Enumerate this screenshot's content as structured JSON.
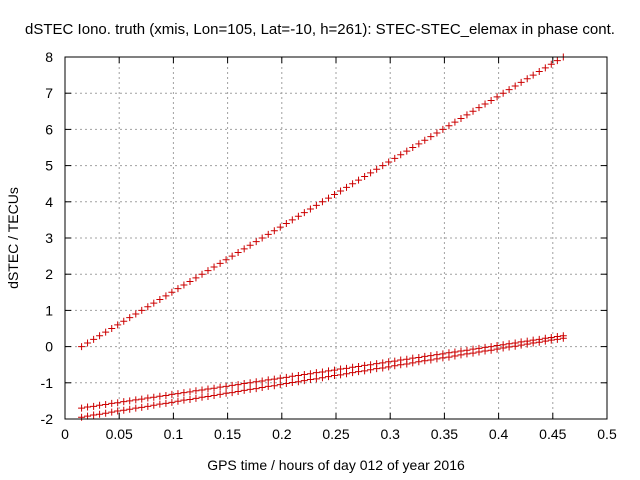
{
  "chart_data": {
    "type": "scatter",
    "title": "dSTEC Iono. truth (xmis, Lon=105, Lat=-10, h=261): STEC-STEC_elemax in phase cont.",
    "xlabel": "GPS time / hours of day 012 of year 2016",
    "ylabel": "dSTEC  / TECUs",
    "xlim": [
      0,
      0.5
    ],
    "ylim": [
      -2,
      8
    ],
    "x_ticks": [
      0,
      0.05,
      0.1,
      0.15,
      0.2,
      0.25,
      0.3,
      0.35,
      0.4,
      0.45,
      0.5
    ],
    "x_tick_labels": [
      "0",
      "0.05",
      "0.1",
      "0.15",
      "0.2",
      "0.25",
      "0.3",
      "0.35",
      "0.4",
      "0.45",
      "0.5"
    ],
    "y_ticks": [
      -2,
      -1,
      0,
      1,
      2,
      3,
      4,
      5,
      6,
      7,
      8
    ],
    "y_tick_labels": [
      "-2",
      "-1",
      "0",
      "1",
      "2",
      "3",
      "4",
      "5",
      "6",
      "7",
      "8"
    ],
    "grid": true,
    "marker": "+",
    "color": "#cc0000",
    "series": [
      {
        "x": [
          0.0153,
          0.0208,
          0.0264,
          0.0319,
          0.0375,
          0.0431,
          0.0486,
          0.0542,
          0.0597,
          0.0653,
          0.0708,
          0.0764,
          0.0819,
          0.0875,
          0.0931,
          0.0986,
          0.1042,
          0.1097,
          0.1153,
          0.1208,
          0.1264,
          0.1319,
          0.1375,
          0.1431,
          0.1486,
          0.1542,
          0.1597,
          0.1653,
          0.1708,
          0.1764,
          0.1819,
          0.1875,
          0.1931,
          0.1986,
          0.2042,
          0.2097,
          0.2153,
          0.2208,
          0.2264,
          0.2319,
          0.2375,
          0.2431,
          0.2486,
          0.2542,
          0.2597,
          0.2653,
          0.2708,
          0.2764,
          0.2819,
          0.2875,
          0.2931,
          0.2986,
          0.3042,
          0.3097,
          0.3153,
          0.3208,
          0.3264,
          0.3319,
          0.3375,
          0.3431,
          0.3486,
          0.3542,
          0.3597,
          0.3653,
          0.3708,
          0.3764,
          0.3819,
          0.3875,
          0.3931,
          0.3986,
          0.4042,
          0.4097,
          0.4153,
          0.4208,
          0.4264,
          0.4319,
          0.4375,
          0.4431,
          0.4486,
          0.4542,
          0.4597
        ],
        "y": [
          0.0,
          0.1,
          0.2,
          0.3,
          0.4,
          0.5,
          0.6,
          0.7,
          0.8,
          0.9,
          1.0,
          1.1,
          1.2,
          1.3,
          1.4,
          1.5,
          1.6,
          1.7,
          1.8,
          1.9,
          2.0,
          2.1,
          2.2,
          2.3,
          2.4,
          2.5,
          2.6,
          2.7,
          2.8,
          2.9,
          3.0,
          3.1,
          3.2,
          3.3,
          3.4,
          3.5,
          3.6,
          3.7,
          3.8,
          3.9,
          4.0,
          4.1,
          4.2,
          4.3,
          4.4,
          4.5,
          4.6,
          4.7,
          4.8,
          4.9,
          5.0,
          5.1,
          5.2,
          5.3,
          5.4,
          5.5,
          5.6,
          5.7,
          5.8,
          5.9,
          6.0,
          6.1,
          6.2,
          6.3,
          6.4,
          6.5,
          6.6,
          6.7,
          6.8,
          6.9,
          7.0,
          7.1,
          7.2,
          7.3,
          7.4,
          7.5,
          7.6,
          7.7,
          7.8,
          7.9,
          8.0
        ]
      },
      {
        "x": [
          0.0153,
          0.0208,
          0.0264,
          0.0319,
          0.0375,
          0.0431,
          0.0486,
          0.0542,
          0.0597,
          0.0653,
          0.0708,
          0.0764,
          0.0819,
          0.0875,
          0.0931,
          0.0986,
          0.1042,
          0.1097,
          0.1153,
          0.1208,
          0.1264,
          0.1319,
          0.1375,
          0.1431,
          0.1486,
          0.1542,
          0.1597,
          0.1653,
          0.1708,
          0.1764,
          0.1819,
          0.1875,
          0.1931,
          0.1986,
          0.2042,
          0.2097,
          0.2153,
          0.2208,
          0.2264,
          0.2319,
          0.2375,
          0.2431,
          0.2486,
          0.2542,
          0.2597,
          0.2653,
          0.2708,
          0.2764,
          0.2819,
          0.2875,
          0.2931,
          0.2986,
          0.3042,
          0.3097,
          0.3153,
          0.3208,
          0.3264,
          0.3319,
          0.3375,
          0.3431,
          0.3486,
          0.3542,
          0.3597,
          0.3653,
          0.3708,
          0.3764,
          0.3819,
          0.3875,
          0.3931,
          0.3986,
          0.4042,
          0.4097,
          0.4153,
          0.4208,
          0.4264,
          0.4319,
          0.4375,
          0.4431,
          0.4486,
          0.4542,
          0.4597
        ],
        "y": [
          -1.7,
          -1.67,
          -1.65,
          -1.62,
          -1.6,
          -1.57,
          -1.55,
          -1.52,
          -1.5,
          -1.47,
          -1.45,
          -1.42,
          -1.4,
          -1.37,
          -1.35,
          -1.32,
          -1.3,
          -1.27,
          -1.25,
          -1.22,
          -1.2,
          -1.17,
          -1.15,
          -1.12,
          -1.1,
          -1.07,
          -1.05,
          -1.02,
          -1.0,
          -0.97,
          -0.95,
          -0.92,
          -0.9,
          -0.87,
          -0.85,
          -0.82,
          -0.8,
          -0.77,
          -0.75,
          -0.72,
          -0.7,
          -0.67,
          -0.65,
          -0.62,
          -0.6,
          -0.57,
          -0.55,
          -0.52,
          -0.5,
          -0.47,
          -0.45,
          -0.42,
          -0.4,
          -0.37,
          -0.35,
          -0.32,
          -0.3,
          -0.27,
          -0.25,
          -0.22,
          -0.2,
          -0.17,
          -0.15,
          -0.12,
          -0.1,
          -0.07,
          -0.05,
          -0.02,
          0.0,
          0.03,
          0.05,
          0.08,
          0.1,
          0.13,
          0.15,
          0.18,
          0.2,
          0.23,
          0.25,
          0.28,
          0.3
        ]
      },
      {
        "x": [
          0.0153,
          0.0208,
          0.0264,
          0.0319,
          0.0375,
          0.0431,
          0.0486,
          0.0542,
          0.0597,
          0.0653,
          0.0708,
          0.0764,
          0.0819,
          0.0875,
          0.0931,
          0.0986,
          0.1042,
          0.1097,
          0.1153,
          0.1208,
          0.1264,
          0.1319,
          0.1375,
          0.1431,
          0.1486,
          0.1542,
          0.1597,
          0.1653,
          0.1708,
          0.1764,
          0.1819,
          0.1875,
          0.1931,
          0.1986,
          0.2042,
          0.2097,
          0.2153,
          0.2208,
          0.2264,
          0.2319,
          0.2375,
          0.2431,
          0.2486,
          0.2542,
          0.2597,
          0.2653,
          0.2708,
          0.2764,
          0.2819,
          0.2875,
          0.2931,
          0.2986,
          0.3042,
          0.3097,
          0.3153,
          0.3208,
          0.3264,
          0.3319,
          0.3375,
          0.3431,
          0.3486,
          0.3542,
          0.3597,
          0.3653,
          0.3708,
          0.3764,
          0.3819,
          0.3875,
          0.3931,
          0.3986,
          0.4042,
          0.4097,
          0.4153,
          0.4208,
          0.4264,
          0.4319,
          0.4375,
          0.4431,
          0.4486,
          0.4542,
          0.4597
        ],
        "y": [
          -1.95,
          -1.92,
          -1.89,
          -1.87,
          -1.84,
          -1.81,
          -1.78,
          -1.76,
          -1.73,
          -1.7,
          -1.68,
          -1.65,
          -1.62,
          -1.59,
          -1.57,
          -1.54,
          -1.51,
          -1.48,
          -1.46,
          -1.43,
          -1.4,
          -1.38,
          -1.35,
          -1.32,
          -1.29,
          -1.27,
          -1.24,
          -1.21,
          -1.18,
          -1.16,
          -1.13,
          -1.1,
          -1.08,
          -1.05,
          -1.02,
          -0.99,
          -0.97,
          -0.94,
          -0.91,
          -0.89,
          -0.86,
          -0.83,
          -0.8,
          -0.78,
          -0.75,
          -0.72,
          -0.69,
          -0.67,
          -0.64,
          -0.61,
          -0.59,
          -0.56,
          -0.53,
          -0.5,
          -0.48,
          -0.45,
          -0.42,
          -0.39,
          -0.37,
          -0.34,
          -0.31,
          -0.29,
          -0.26,
          -0.23,
          -0.2,
          -0.18,
          -0.15,
          -0.12,
          -0.1,
          -0.07,
          -0.04,
          -0.01,
          0.01,
          0.04,
          0.07,
          0.1,
          0.12,
          0.15,
          0.18,
          0.2,
          0.23
        ]
      }
    ]
  }
}
